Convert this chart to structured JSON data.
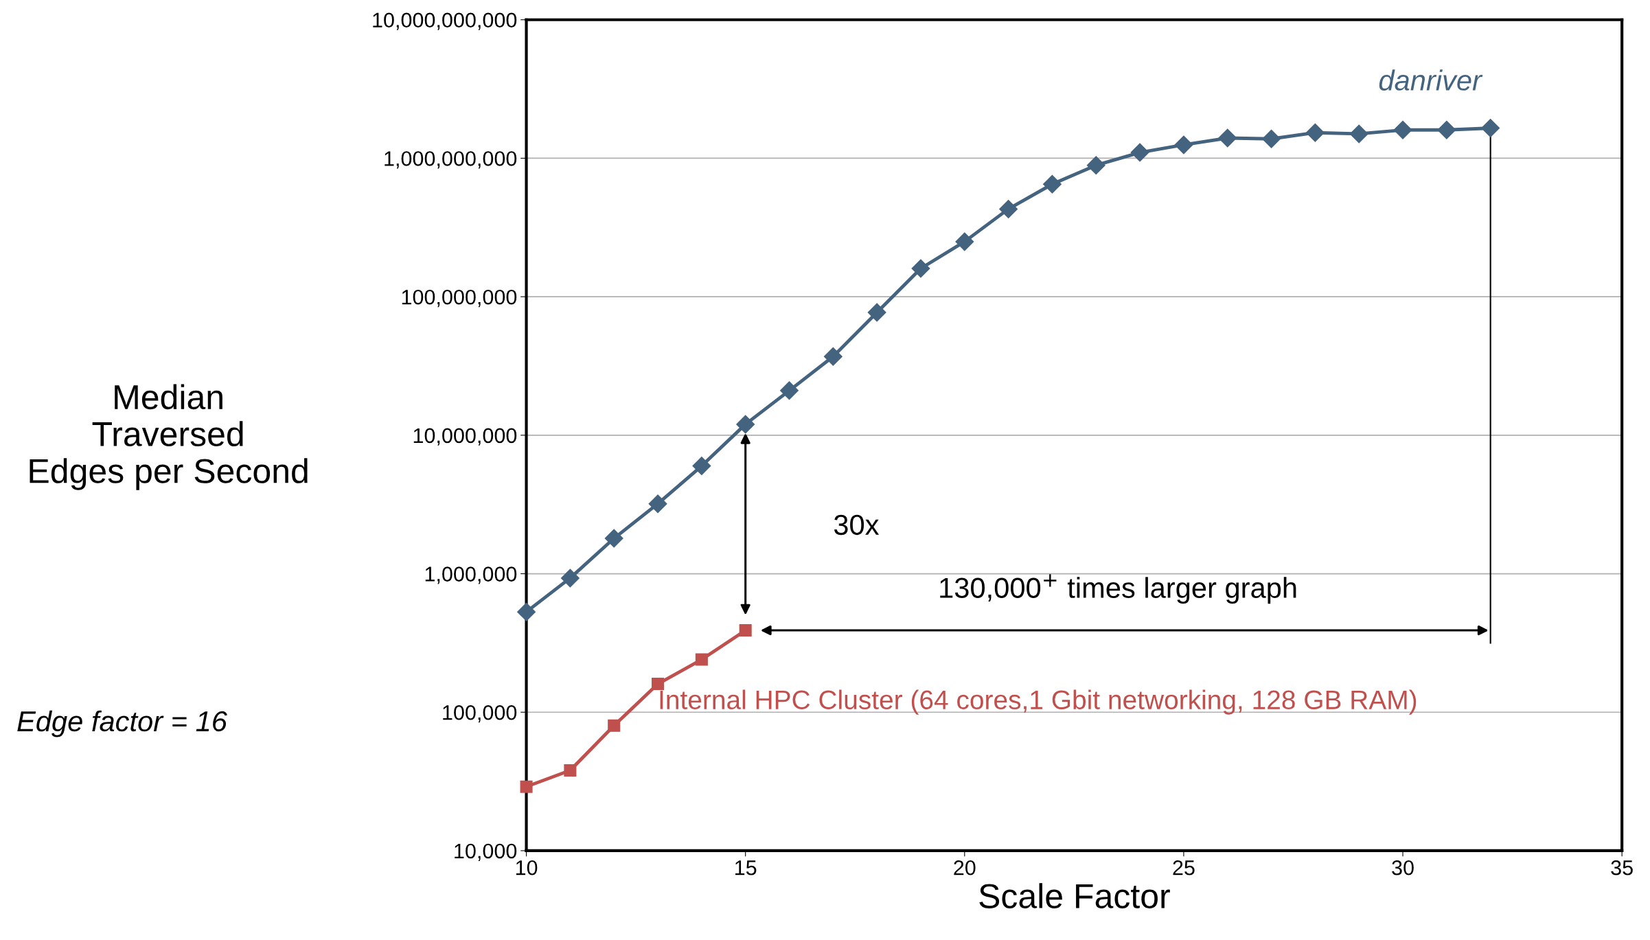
{
  "chart_data": {
    "type": "line",
    "xlabel": "Scale Factor",
    "ylabel": "Median\nTraversed\nEdges per Second",
    "log": "y",
    "xlim": [
      10,
      35
    ],
    "xticks": [
      10,
      15,
      20,
      25,
      30,
      35
    ],
    "ylim": [
      10000,
      10000000000
    ],
    "yticks": [
      {
        "value": 10000,
        "label": "10,000"
      },
      {
        "value": 100000,
        "label": "100,000"
      },
      {
        "value": 1000000,
        "label": "1,000,000"
      },
      {
        "value": 10000000,
        "label": "10,000,000"
      },
      {
        "value": 100000000,
        "label": "100,000,000"
      },
      {
        "value": 1000000000,
        "label": "1,000,000,000"
      },
      {
        "value": 10000000000,
        "label": "10,000,000,000"
      }
    ],
    "grid": "y",
    "legend": false,
    "series": [
      {
        "name": "danriver",
        "color": "#44637f",
        "marker": "diamond",
        "x": [
          10,
          11,
          12,
          13,
          14,
          15,
          16,
          17,
          18,
          19,
          20,
          21,
          22,
          23,
          24,
          25,
          26,
          27,
          28,
          29,
          30,
          31,
          32
        ],
        "values": [
          530000,
          930000,
          1800000,
          3200000,
          6000000,
          12000000,
          21000000,
          37000000,
          77000000,
          160000000,
          250000000,
          430000000,
          650000000,
          890000000,
          1100000000,
          1250000000,
          1400000000,
          1380000000,
          1530000000,
          1500000000,
          1600000000,
          1600000000,
          1650000000
        ]
      },
      {
        "name": "Internal HPC Cluster (64 cores,1 Gbit networking, 128 GB RAM)",
        "color": "#c0504d",
        "marker": "square",
        "x": [
          10,
          11,
          12,
          13,
          14,
          15
        ],
        "values": [
          29000,
          38000,
          80000,
          160000,
          240000,
          390000
        ]
      }
    ],
    "ref_lines": [
      {
        "axis": "x",
        "value": 32,
        "color": "#000000"
      }
    ],
    "annotations": [
      "30x",
      "130,000$^{+}$ times larger graph",
      "Edge factor = 16"
    ]
  }
}
